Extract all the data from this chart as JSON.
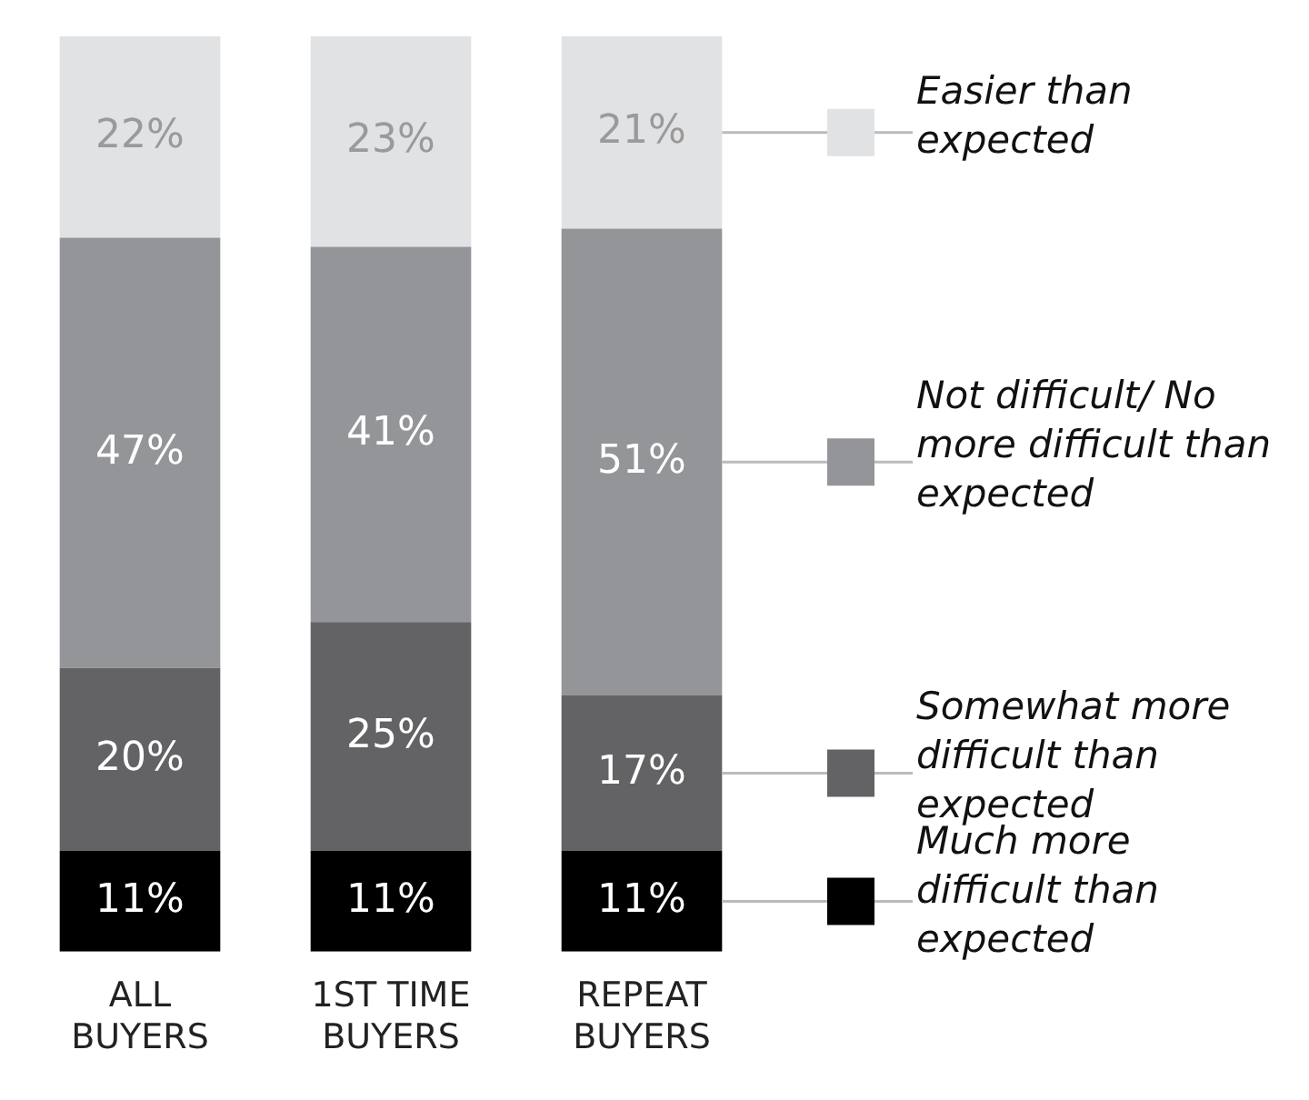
{
  "chart_data": {
    "type": "bar",
    "stacked": true,
    "legend": "right",
    "grid": false,
    "categories": [
      "ALL BUYERS",
      "1ST TIME BUYERS",
      "REPEAT BUYERS"
    ],
    "series": [
      {
        "name": "Much more difficult than expected",
        "color": "#000000",
        "values": [
          11,
          11,
          11
        ],
        "value_labels": [
          "11%",
          "11%",
          "11%"
        ]
      },
      {
        "name": "Somewhat more difficult than expected",
        "color": "#636365",
        "values": [
          20,
          25,
          17
        ],
        "value_labels": [
          "20%",
          "25%",
          "17%"
        ]
      },
      {
        "name": "Not difficult/ No more difficult than expected",
        "color": "#949599",
        "values": [
          47,
          41,
          51
        ],
        "value_labels": [
          "47%",
          "41%",
          "51%"
        ]
      },
      {
        "name": "Easier than expected",
        "color": "#e1e2e4",
        "values": [
          22,
          23,
          21
        ],
        "value_labels": [
          "22%",
          "23%",
          "21%"
        ]
      }
    ]
  }
}
